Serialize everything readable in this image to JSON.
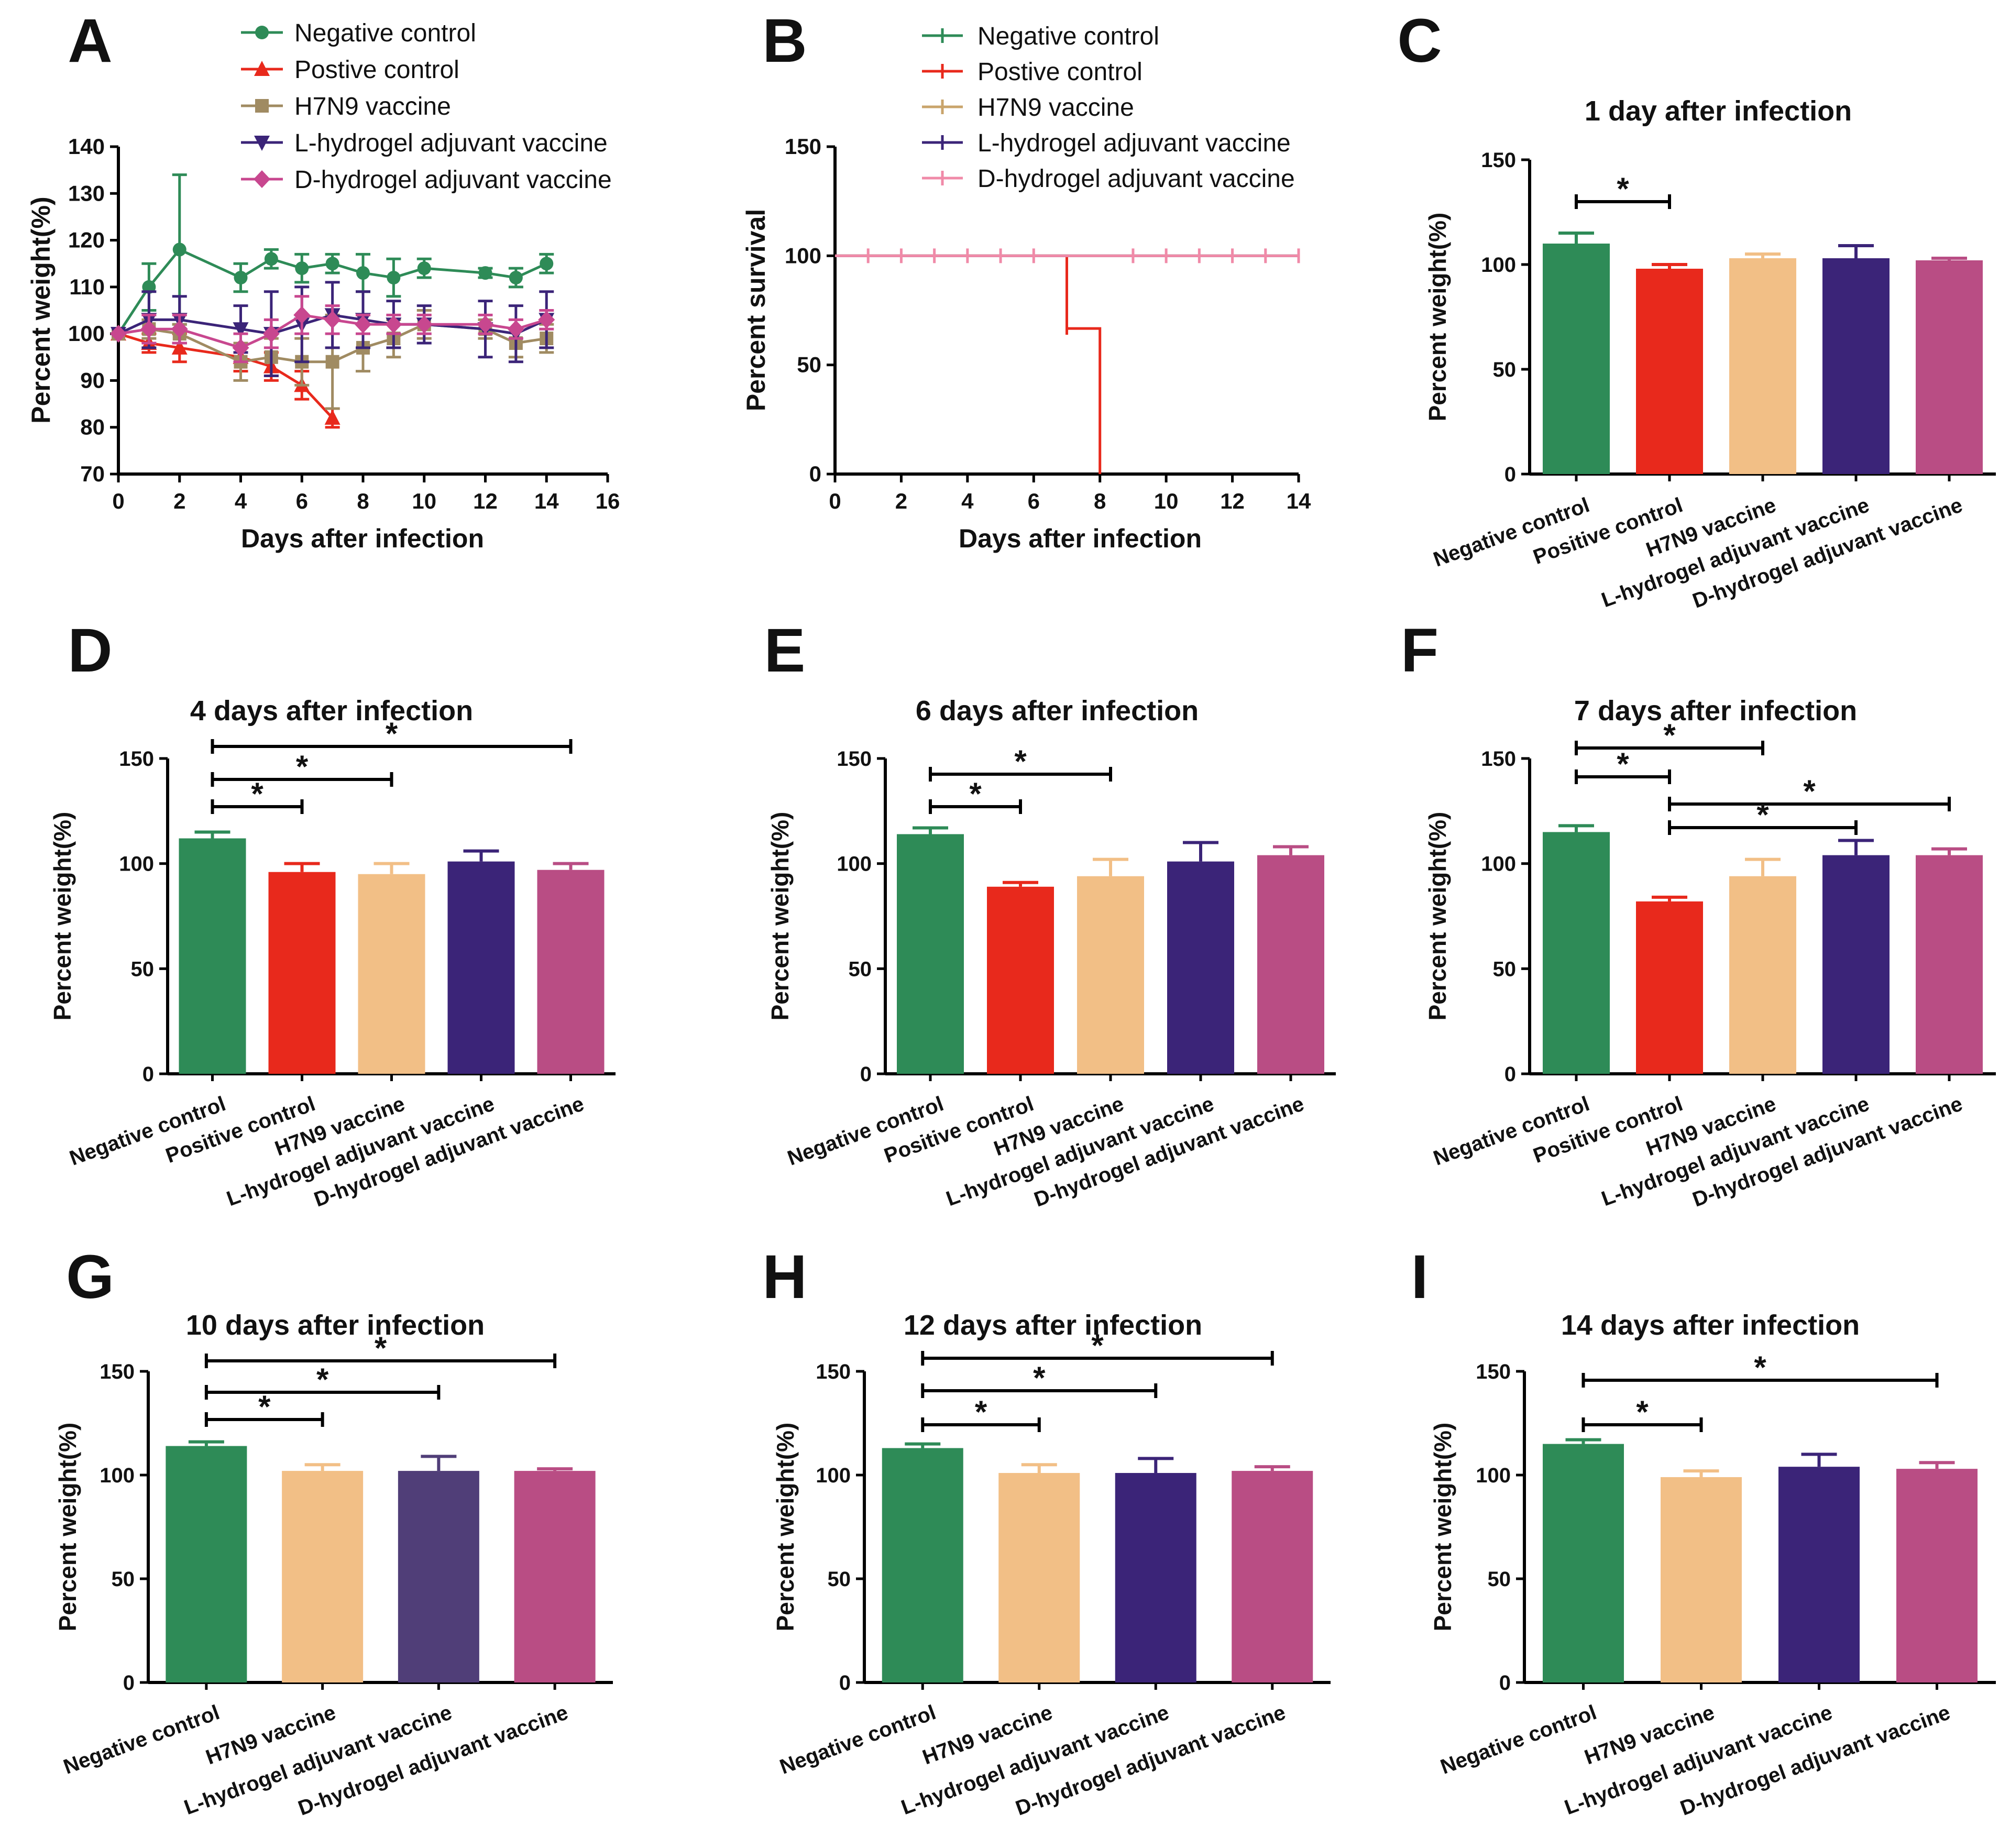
{
  "colors": {
    "negative": "#2e8b57",
    "positive": "#e8291c",
    "h7n9": "#f2bf86",
    "h7n9_line": "#a08b62",
    "l_hydrogel": "#3b2478",
    "l_hydrogel_g": "#503e78",
    "d_hydrogel": "#b94d84",
    "d_hydrogel_line": "#c8478f",
    "survival_d": "#f08aa8"
  },
  "chart_data": [
    {
      "panel": "A",
      "type": "line",
      "xlabel": "Days  after infection",
      "ylabel": "Percent weight(%)",
      "xlim": [
        0,
        16
      ],
      "ylim": [
        70,
        140
      ],
      "xticks": [
        "0",
        "2",
        "4",
        "6",
        "8",
        "10",
        "12",
        "14",
        "16"
      ],
      "yticks": [
        "70",
        "80",
        "90",
        "100",
        "110",
        "120",
        "130",
        "140"
      ],
      "legend": "top",
      "series": [
        {
          "name": "Negative control",
          "marker": "circle",
          "color": "#2e8b57",
          "x": [
            0,
            1,
            2,
            4,
            5,
            6,
            7,
            8,
            9,
            10,
            12,
            13,
            14
          ],
          "y": [
            100,
            110,
            118,
            112,
            116,
            114,
            115,
            113,
            112,
            114,
            113,
            112,
            115
          ],
          "err": [
            0,
            5,
            16,
            3,
            2,
            3,
            2,
            4,
            4,
            2,
            1,
            2,
            2
          ]
        },
        {
          "name": "Postive control",
          "marker": "triangle-up",
          "color": "#e8291c",
          "x": [
            0,
            1,
            2,
            4,
            5,
            6,
            7
          ],
          "y": [
            100,
            98,
            97,
            95,
            93,
            89,
            82
          ],
          "err": [
            0,
            2,
            3,
            3,
            3,
            3,
            2
          ]
        },
        {
          "name": "H7N9 vaccine",
          "marker": "square",
          "color": "#a08b62",
          "x": [
            0,
            1,
            2,
            4,
            5,
            6,
            7,
            8,
            9,
            10,
            12,
            13,
            14
          ],
          "y": [
            100,
            101,
            100,
            94,
            95,
            94,
            94,
            97,
            99,
            102,
            101,
            98,
            99
          ],
          "err": [
            0,
            2,
            2,
            4,
            4,
            5,
            10,
            5,
            4,
            3,
            2,
            3,
            3
          ]
        },
        {
          "name": "L-hydrogel adjuvant vaccine",
          "marker": "triangle-down",
          "color": "#3b2478",
          "x": [
            0,
            1,
            2,
            4,
            5,
            6,
            7,
            8,
            9,
            10,
            12,
            13,
            14
          ],
          "y": [
            100,
            103,
            103,
            101,
            100,
            102,
            104,
            103,
            102,
            102,
            101,
            100,
            103
          ],
          "err": [
            0,
            6,
            5,
            5,
            9,
            8,
            7,
            6,
            5,
            4,
            6,
            6,
            6
          ]
        },
        {
          "name": "D-hydrogel adjuvant vaccine",
          "marker": "diamond",
          "color": "#c8478f",
          "x": [
            0,
            1,
            2,
            4,
            5,
            6,
            7,
            8,
            9,
            10,
            12,
            13,
            14
          ],
          "y": [
            100,
            101,
            101,
            97,
            100,
            104,
            103,
            102,
            102,
            102,
            102,
            101,
            103
          ],
          "err": [
            0,
            3,
            3,
            3,
            3,
            4,
            3,
            2,
            2,
            2,
            2,
            2,
            2
          ]
        }
      ]
    },
    {
      "panel": "B",
      "type": "line",
      "subtype": "survival",
      "xlabel": "Days  after infection",
      "ylabel": "Percent survival",
      "xlim": [
        0,
        14
      ],
      "ylim": [
        0,
        150
      ],
      "xticks": [
        "0",
        "2",
        "4",
        "6",
        "8",
        "10",
        "12",
        "14"
      ],
      "yticks": [
        "0",
        "50",
        "100",
        "150"
      ],
      "censor_days": [
        1,
        2,
        3,
        4,
        5,
        6,
        7,
        8,
        9,
        10,
        11,
        12,
        13,
        14
      ],
      "legend": "top",
      "series": [
        {
          "name": "Negative control",
          "color": "#2e8b57",
          "x": [
            0,
            14
          ],
          "y": [
            100,
            100
          ]
        },
        {
          "name": "Postive control",
          "color": "#e8291c",
          "x": [
            0,
            7,
            7,
            8,
            8
          ],
          "y": [
            100,
            100,
            66.7,
            66.7,
            0
          ]
        },
        {
          "name": "H7N9 vaccine",
          "color": "#c9a46b",
          "x": [
            0,
            14
          ],
          "y": [
            100,
            100
          ]
        },
        {
          "name": "L-hydrogel adjuvant vaccine",
          "color": "#3b2478",
          "x": [
            0,
            14
          ],
          "y": [
            100,
            100
          ]
        },
        {
          "name": "D-hydrogel adjuvant vaccine",
          "color": "#f08aa8",
          "x": [
            0,
            14
          ],
          "y": [
            100,
            100
          ]
        }
      ]
    },
    {
      "panel": "C",
      "type": "bar",
      "title": "1 day after infection",
      "ylabel": "Percent weight(%)",
      "ylim": [
        0,
        150
      ],
      "yticks": [
        "0",
        "50",
        "100",
        "150"
      ],
      "categories": [
        "Negative control",
        "Positive control",
        "H7N9 vaccine",
        "L-hydrogel adjuvant vaccine",
        "D-hydrogel adjuvant vaccine"
      ],
      "values": [
        110,
        98,
        103,
        103,
        102
      ],
      "errors": [
        5,
        2,
        2,
        6,
        1
      ],
      "colors": [
        "#2e8b57",
        "#e8291c",
        "#f2bf86",
        "#3b2478",
        "#b94d84"
      ],
      "significance": [
        {
          "from": 0,
          "to": 1,
          "label": "*"
        }
      ]
    },
    {
      "panel": "D",
      "type": "bar",
      "title": "4 days after infection",
      "ylabel": "Percent weight(%)",
      "ylim": [
        0,
        150
      ],
      "yticks": [
        "0",
        "50",
        "100",
        "150"
      ],
      "categories": [
        "Negative control",
        "Positive control",
        "H7N9 vaccine",
        "L-hydrogel adjuvant vaccine",
        "D-hydrogel adjuvant vaccine"
      ],
      "values": [
        112,
        96,
        95,
        101,
        97
      ],
      "errors": [
        3,
        4,
        5,
        5,
        3
      ],
      "colors": [
        "#2e8b57",
        "#e8291c",
        "#f2bf86",
        "#3b2478",
        "#b94d84"
      ],
      "significance": [
        {
          "from": 0,
          "to": 4,
          "label": "*"
        },
        {
          "from": 0,
          "to": 2,
          "label": "*"
        },
        {
          "from": 0,
          "to": 1,
          "label": "*"
        }
      ]
    },
    {
      "panel": "E",
      "type": "bar",
      "title": "6 days after infection",
      "ylabel": "Percent weight(%)",
      "ylim": [
        0,
        150
      ],
      "yticks": [
        "0",
        "50",
        "100",
        "150"
      ],
      "categories": [
        "Negative control",
        "Positive control",
        "H7N9 vaccine",
        "L-hydrogel adjuvant vaccine",
        "D-hydrogel adjuvant vaccine"
      ],
      "values": [
        114,
        89,
        94,
        101,
        104
      ],
      "errors": [
        3,
        2,
        8,
        9,
        4
      ],
      "colors": [
        "#2e8b57",
        "#e8291c",
        "#f2bf86",
        "#3b2478",
        "#b94d84"
      ],
      "significance": [
        {
          "from": 0,
          "to": 2,
          "label": "*"
        },
        {
          "from": 0,
          "to": 1,
          "label": "*"
        }
      ]
    },
    {
      "panel": "F",
      "type": "bar",
      "title": "7 days after infection",
      "ylabel": "Percent weight(%)",
      "ylim": [
        0,
        150
      ],
      "yticks": [
        "0",
        "50",
        "100",
        "150"
      ],
      "categories": [
        "Negative control",
        "Positive control",
        "H7N9 vaccine",
        "L-hydrogel adjuvant vaccine",
        "D-hydrogel adjuvant vaccine"
      ],
      "values": [
        115,
        82,
        94,
        104,
        104
      ],
      "errors": [
        3,
        2,
        8,
        7,
        3
      ],
      "colors": [
        "#2e8b57",
        "#e8291c",
        "#f2bf86",
        "#3b2478",
        "#b94d84"
      ],
      "significance": [
        {
          "from": 0,
          "to": 2,
          "label": "*"
        },
        {
          "from": 0,
          "to": 1,
          "label": "*"
        },
        {
          "from": 1,
          "to": 4,
          "label": "*"
        },
        {
          "from": 1,
          "to": 3,
          "label": "*"
        }
      ]
    },
    {
      "panel": "G",
      "type": "bar",
      "title": "10 days after infection",
      "ylabel": "Percent weight(%)",
      "ylim": [
        0,
        150
      ],
      "yticks": [
        "0",
        "50",
        "100",
        "150"
      ],
      "categories": [
        "Negative control",
        "H7N9 vaccine",
        "L-hydrogel adjuvant vaccine",
        "D-hydrogel adjuvant vaccine"
      ],
      "values": [
        114,
        102,
        102,
        102
      ],
      "errors": [
        2,
        3,
        7,
        1
      ],
      "colors": [
        "#2e8b57",
        "#f2bf86",
        "#503e78",
        "#b94d84"
      ],
      "significance": [
        {
          "from": 0,
          "to": 3,
          "label": "*"
        },
        {
          "from": 0,
          "to": 2,
          "label": "*"
        },
        {
          "from": 0,
          "to": 1,
          "label": "*"
        }
      ]
    },
    {
      "panel": "H",
      "type": "bar",
      "title": "12 days after infection",
      "ylabel": "Percent weight(%)",
      "ylim": [
        0,
        150
      ],
      "yticks": [
        "0",
        "50",
        "100",
        "150"
      ],
      "categories": [
        "Negative control",
        "H7N9 vaccine",
        "L-hydrogel adjuvant vaccine",
        "D-hydrogel adjuvant vaccine"
      ],
      "values": [
        113,
        101,
        101,
        102
      ],
      "errors": [
        2,
        4,
        7,
        2
      ],
      "colors": [
        "#2e8b57",
        "#f2bf86",
        "#3b2478",
        "#b94d84"
      ],
      "significance": [
        {
          "from": 0,
          "to": 3,
          "label": "*"
        },
        {
          "from": 0,
          "to": 2,
          "label": "*"
        },
        {
          "from": 0,
          "to": 1,
          "label": "*"
        }
      ]
    },
    {
      "panel": "I",
      "type": "bar",
      "title": "14 days after infection",
      "ylabel": "Percent weight(%)",
      "ylim": [
        0,
        150
      ],
      "yticks": [
        "0",
        "50",
        "100",
        "150"
      ],
      "categories": [
        "Negative control",
        "H7N9 vaccine",
        "L-hydrogel adjuvant vaccine",
        "D-hydrogel adjuvant vaccine"
      ],
      "values": [
        115,
        99,
        104,
        103
      ],
      "errors": [
        2,
        3,
        6,
        3
      ],
      "colors": [
        "#2e8b57",
        "#f2bf86",
        "#3b2478",
        "#b94d84"
      ],
      "significance": [
        {
          "from": 0,
          "to": 3,
          "label": "*"
        },
        {
          "from": 0,
          "to": 1,
          "label": "*"
        }
      ]
    }
  ]
}
